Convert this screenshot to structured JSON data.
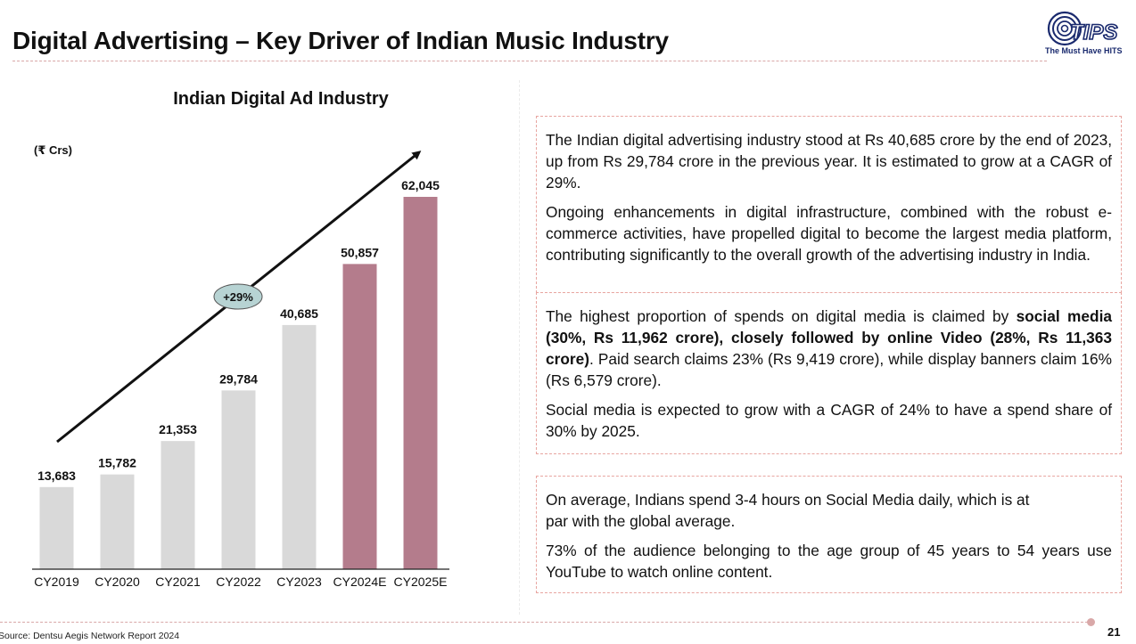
{
  "header": {
    "title": "Digital Advertising – Key Driver of Indian Music Industry",
    "logo_tagline": "The Must Have HITS",
    "logo_mark": "TIPS"
  },
  "chart": {
    "unit": "(₹ Crs)",
    "growth_badge": "+29%"
  },
  "chart_data": {
    "type": "bar",
    "title": "Indian Digital Ad Industry",
    "ylabel": "(₹ Crs)",
    "categories": [
      "CY2019",
      "CY2020",
      "CY2021",
      "CY2022",
      "CY2023",
      "CY2024E",
      "CY2025E"
    ],
    "values": [
      13683,
      15782,
      21353,
      29784,
      40685,
      50857,
      62045
    ],
    "value_labels": [
      "13,683",
      "15,782",
      "21,353",
      "29,784",
      "40,685",
      "50,857",
      "62,045"
    ],
    "estimated": [
      false,
      false,
      false,
      false,
      false,
      true,
      true
    ],
    "colors": {
      "actual": "#d9d9d9",
      "estimate": "#b47c8c",
      "baseline": "#222222"
    },
    "annotation": "+29%",
    "ylim": [
      0,
      62045
    ]
  },
  "panels": {
    "box1": {
      "p1": "The Indian digital advertising industry stood at Rs 40,685 crore by the end of 2023, up from Rs 29,784 crore in the previous year. It is estimated to grow at a CAGR of 29%.",
      "p2": "Ongoing enhancements in digital infrastructure, combined with the robust e-commerce activities, have propelled digital to become the largest media platform, contributing significantly to the overall growth of the advertising industry in India."
    },
    "box2": {
      "p1_a": "The highest proportion of spends on digital media is claimed by ",
      "p1_b": "social media (30%, Rs 11,962 crore), closely followed by online Video (28%, Rs 11,363 crore)",
      "p1_c": ". Paid search claims 23% (Rs 9,419 crore), while display banners claim 16% (Rs 6,579 crore).",
      "p2": "Social media is expected to grow with a CAGR of 24% to have a spend share of 30% by 2025."
    },
    "box3": {
      "p1": "On average, Indians spend 3-4 hours on Social Media daily, which is at par with the global average.",
      "p2": "73% of the audience belonging to the age group of 45 years to 54 years use YouTube to watch online content."
    }
  },
  "footer": {
    "source": "Source: Dentsu Aegis Network Report 2024",
    "page": "21"
  },
  "colors": {
    "accent_rule": "#d9a8a8",
    "box_border": "#e8a5a0",
    "badge_fill": "#b7d3d3",
    "logo_blue": "#1a2a6e"
  }
}
